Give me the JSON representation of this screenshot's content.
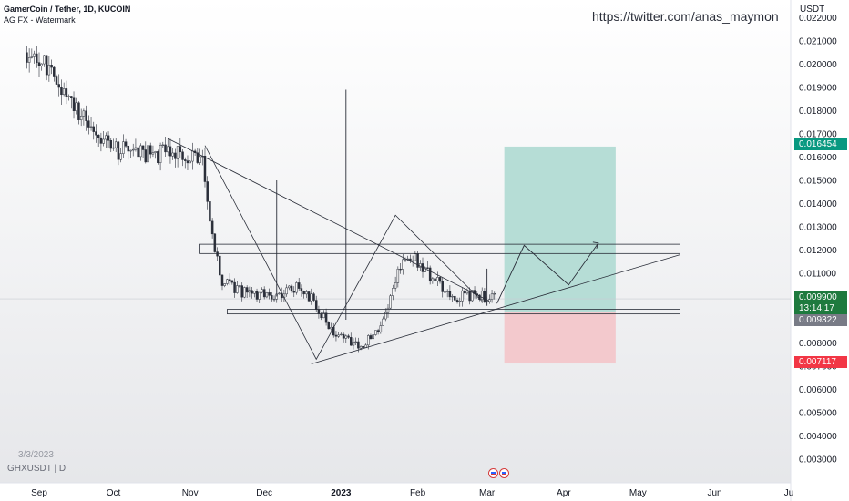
{
  "header": {
    "pair_title": "GamerCoin / Tether, 1D, KUCOIN",
    "indicator": "AG FX - Watermark"
  },
  "watermark_url": "https://twitter.com/anas_maymon",
  "footer": {
    "date": "3/3/2023",
    "symbol": "GHXUSDT | D"
  },
  "colors": {
    "profit_zone": "#b6ddd6",
    "loss_zone": "#f3c9cd",
    "drawing_line": "#2a2e39",
    "price_tag_target": "#089981",
    "price_tag_last": "#1e7a3e",
    "price_tag_entry": "#787b86",
    "price_tag_stop": "#f23645"
  },
  "icons": [
    "economic-event-icon-us"
  ],
  "price_tags": {
    "target": "0.016454",
    "last": "0.009900",
    "countdown": "13:14:17",
    "entry": "0.009322",
    "stop": "0.007117"
  },
  "chart_data": {
    "type": "candlestick",
    "title": "GamerCoin / Tether, 1D, KUCOIN",
    "ylabel": "USDT",
    "ylim": [
      0.0023,
      0.0222
    ],
    "grid": false,
    "x_tick_labels": [
      "Sep",
      "Oct",
      "Nov",
      "Dec",
      "2023",
      "Feb",
      "Mar",
      "Apr",
      "May",
      "Jun",
      "Ju"
    ],
    "y_tick_labels": [
      "0.022000",
      "0.021000",
      "0.020000",
      "0.019000",
      "0.018000",
      "0.017000",
      "0.016000",
      "0.015000",
      "0.014000",
      "0.013000",
      "0.012000",
      "0.011000",
      "0.010000",
      "0.008000",
      "0.007000",
      "0.006000",
      "0.005000",
      "0.004000",
      "0.003000"
    ],
    "y_tick_values": [
      0.022,
      0.021,
      0.02,
      0.019,
      0.018,
      0.017,
      0.016,
      0.015,
      0.014,
      0.013,
      0.012,
      0.011,
      0.01,
      0.008,
      0.007,
      0.006,
      0.005,
      0.004,
      0.003
    ],
    "x_date_ticks": [
      "2022-09-01",
      "2022-10-01",
      "2022-11-01",
      "2022-12-01",
      "2023-01-01",
      "2023-02-01",
      "2023-03-01",
      "2023-04-01",
      "2023-05-01",
      "2023-06-01",
      "2023-07-01"
    ],
    "price_path": [
      [
        "2022-08-27",
        0.0205
      ],
      [
        "2022-09-03",
        0.02
      ],
      [
        "2022-09-10",
        0.019
      ],
      [
        "2022-09-16",
        0.018
      ],
      [
        "2022-09-22",
        0.0172
      ],
      [
        "2022-10-02",
        0.0163
      ],
      [
        "2022-10-15",
        0.0161
      ],
      [
        "2022-10-27",
        0.0162
      ],
      [
        "2022-11-06",
        0.0158
      ],
      [
        "2022-11-10",
        0.0124
      ],
      [
        "2022-11-14",
        0.0106
      ],
      [
        "2022-11-22",
        0.0102
      ],
      [
        "2022-12-04",
        0.01
      ],
      [
        "2022-12-14",
        0.0104
      ],
      [
        "2022-12-21",
        0.0098
      ],
      [
        "2022-12-29",
        0.0085
      ],
      [
        "2023-01-08",
        0.0078
      ],
      [
        "2023-01-17",
        0.0087
      ],
      [
        "2023-01-24",
        0.0111
      ],
      [
        "2023-01-29",
        0.0118
      ],
      [
        "2023-02-07",
        0.0108
      ],
      [
        "2023-02-16",
        0.01
      ],
      [
        "2023-02-24",
        0.0101
      ],
      [
        "2023-03-04",
        0.0099
      ]
    ],
    "wicks": [
      {
        "date": "2022-12-06",
        "high": 0.015,
        "low": 0.01
      },
      {
        "date": "2023-01-03",
        "high": 0.0189,
        "low": 0.009
      },
      {
        "date": "2023-03-01",
        "high": 0.0112,
        "low": 0.0096
      }
    ],
    "drawings": {
      "resistance_zone": {
        "start": "2022-11-05",
        "end": "2023-05-18",
        "top": 0.01225,
        "bottom": 0.01185
      },
      "support_zone": {
        "start": "2022-11-16",
        "end": "2023-05-18",
        "top": 0.00945,
        "bottom": 0.00925
      },
      "descending_trendline": [
        [
          "2022-10-23",
          0.0168
        ],
        [
          "2023-03-02",
          0.0098
        ]
      ],
      "ascending_trendline": [
        [
          "2022-12-20",
          0.0071
        ],
        [
          "2023-05-18",
          0.0118
        ]
      ],
      "pattern_zigzag": [
        [
          "2022-11-07",
          0.0165
        ],
        [
          "2022-12-22",
          0.0073
        ],
        [
          "2023-01-23",
          0.0135
        ],
        [
          "2023-02-27",
          0.0098
        ]
      ],
      "projection_path": [
        [
          "2023-03-05",
          0.0097
        ],
        [
          "2023-03-16",
          0.0122
        ],
        [
          "2023-04-03",
          0.0105
        ],
        [
          "2023-04-15",
          0.0123
        ]
      ],
      "long_position": {
        "start": "2023-03-08",
        "end": "2023-04-22",
        "entry": 0.009322,
        "target": 0.016454,
        "stop": 0.007117
      }
    },
    "last_price": 0.0099
  }
}
